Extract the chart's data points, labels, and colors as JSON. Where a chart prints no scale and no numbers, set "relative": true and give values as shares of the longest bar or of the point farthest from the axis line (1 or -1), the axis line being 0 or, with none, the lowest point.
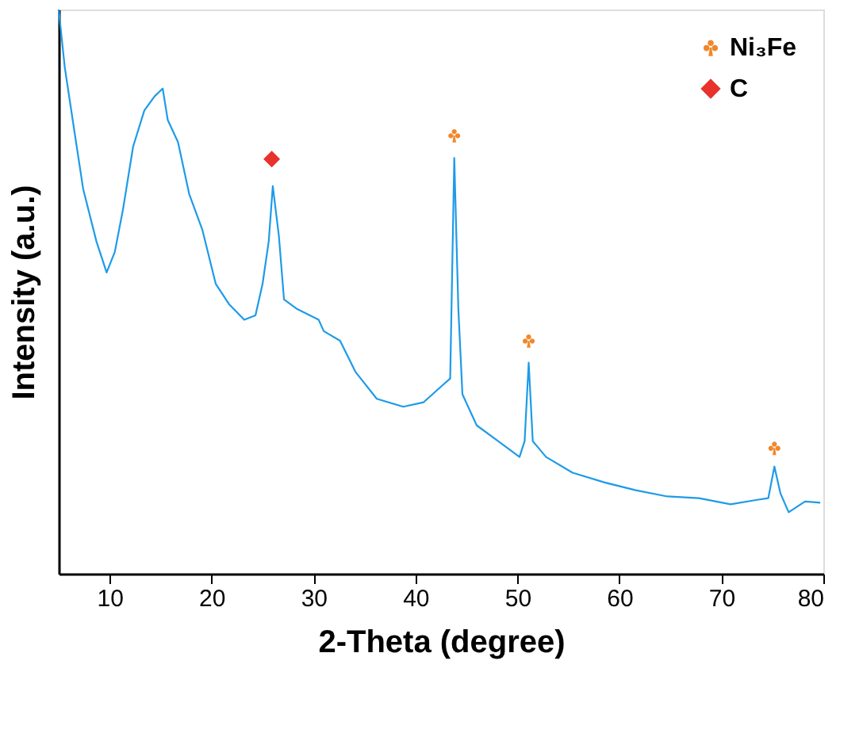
{
  "chart_data": {
    "type": "line",
    "relative": true,
    "xlabel": "2-Theta (degree)",
    "ylabel": "Intensity (a.u.)",
    "xlim": [
      5,
      80
    ],
    "xticks": [
      10,
      20,
      30,
      40,
      50,
      60,
      70,
      80
    ],
    "grid": false,
    "legend": "top right",
    "series": [
      {
        "color": "#1e9be8",
        "marker": "none",
        "x": [
          5,
          5.6,
          6.6,
          7.4,
          8.7,
          9.7,
          10.5,
          11.3,
          12.3,
          13.4,
          14.4,
          15.2,
          15.7,
          16.7,
          17.8,
          19.1,
          20.4,
          21.7,
          23.2,
          24.3,
          25.0,
          25.6,
          26.0,
          26.6,
          27.1,
          28.4,
          30.5,
          31.0,
          32.6,
          34.1,
          36.2,
          38.8,
          40.8,
          42.4,
          43.4,
          43.8,
          44.2,
          44.6,
          46.0,
          48.1,
          50.2,
          50.7,
          51.1,
          51.5,
          52.2,
          52.8,
          55.4,
          58.5,
          61.6,
          64.7,
          67.8,
          70.9,
          73.5,
          74.6,
          75.2,
          75.8,
          76.6,
          78.2,
          79.7
        ],
        "values": [
          1.0,
          0.897,
          0.777,
          0.682,
          0.589,
          0.534,
          0.57,
          0.645,
          0.757,
          0.821,
          0.846,
          0.86,
          0.804,
          0.765,
          0.673,
          0.609,
          0.514,
          0.478,
          0.45,
          0.458,
          0.514,
          0.589,
          0.687,
          0.598,
          0.486,
          0.469,
          0.45,
          0.43,
          0.413,
          0.358,
          0.31,
          0.296,
          0.304,
          0.33,
          0.346,
          0.737,
          0.469,
          0.318,
          0.263,
          0.235,
          0.207,
          0.235,
          0.374,
          0.235,
          0.22,
          0.207,
          0.179,
          0.162,
          0.148,
          0.137,
          0.134,
          0.123,
          0.131,
          0.134,
          0.19,
          0.142,
          0.109,
          0.128,
          0.126
        ]
      },
      {
        "type": "scatter",
        "name": "Ni₃Fe",
        "color": "#f0882a",
        "x": [
          43.8,
          51.1,
          75.2
        ],
        "values": [
          0.777,
          0.413,
          0.223
        ]
      },
      {
        "type": "scatter",
        "name": "C",
        "color": "#e8322c",
        "marker": "diamond",
        "x": [
          25.9
        ],
        "values": [
          0.735
        ]
      }
    ]
  }
}
